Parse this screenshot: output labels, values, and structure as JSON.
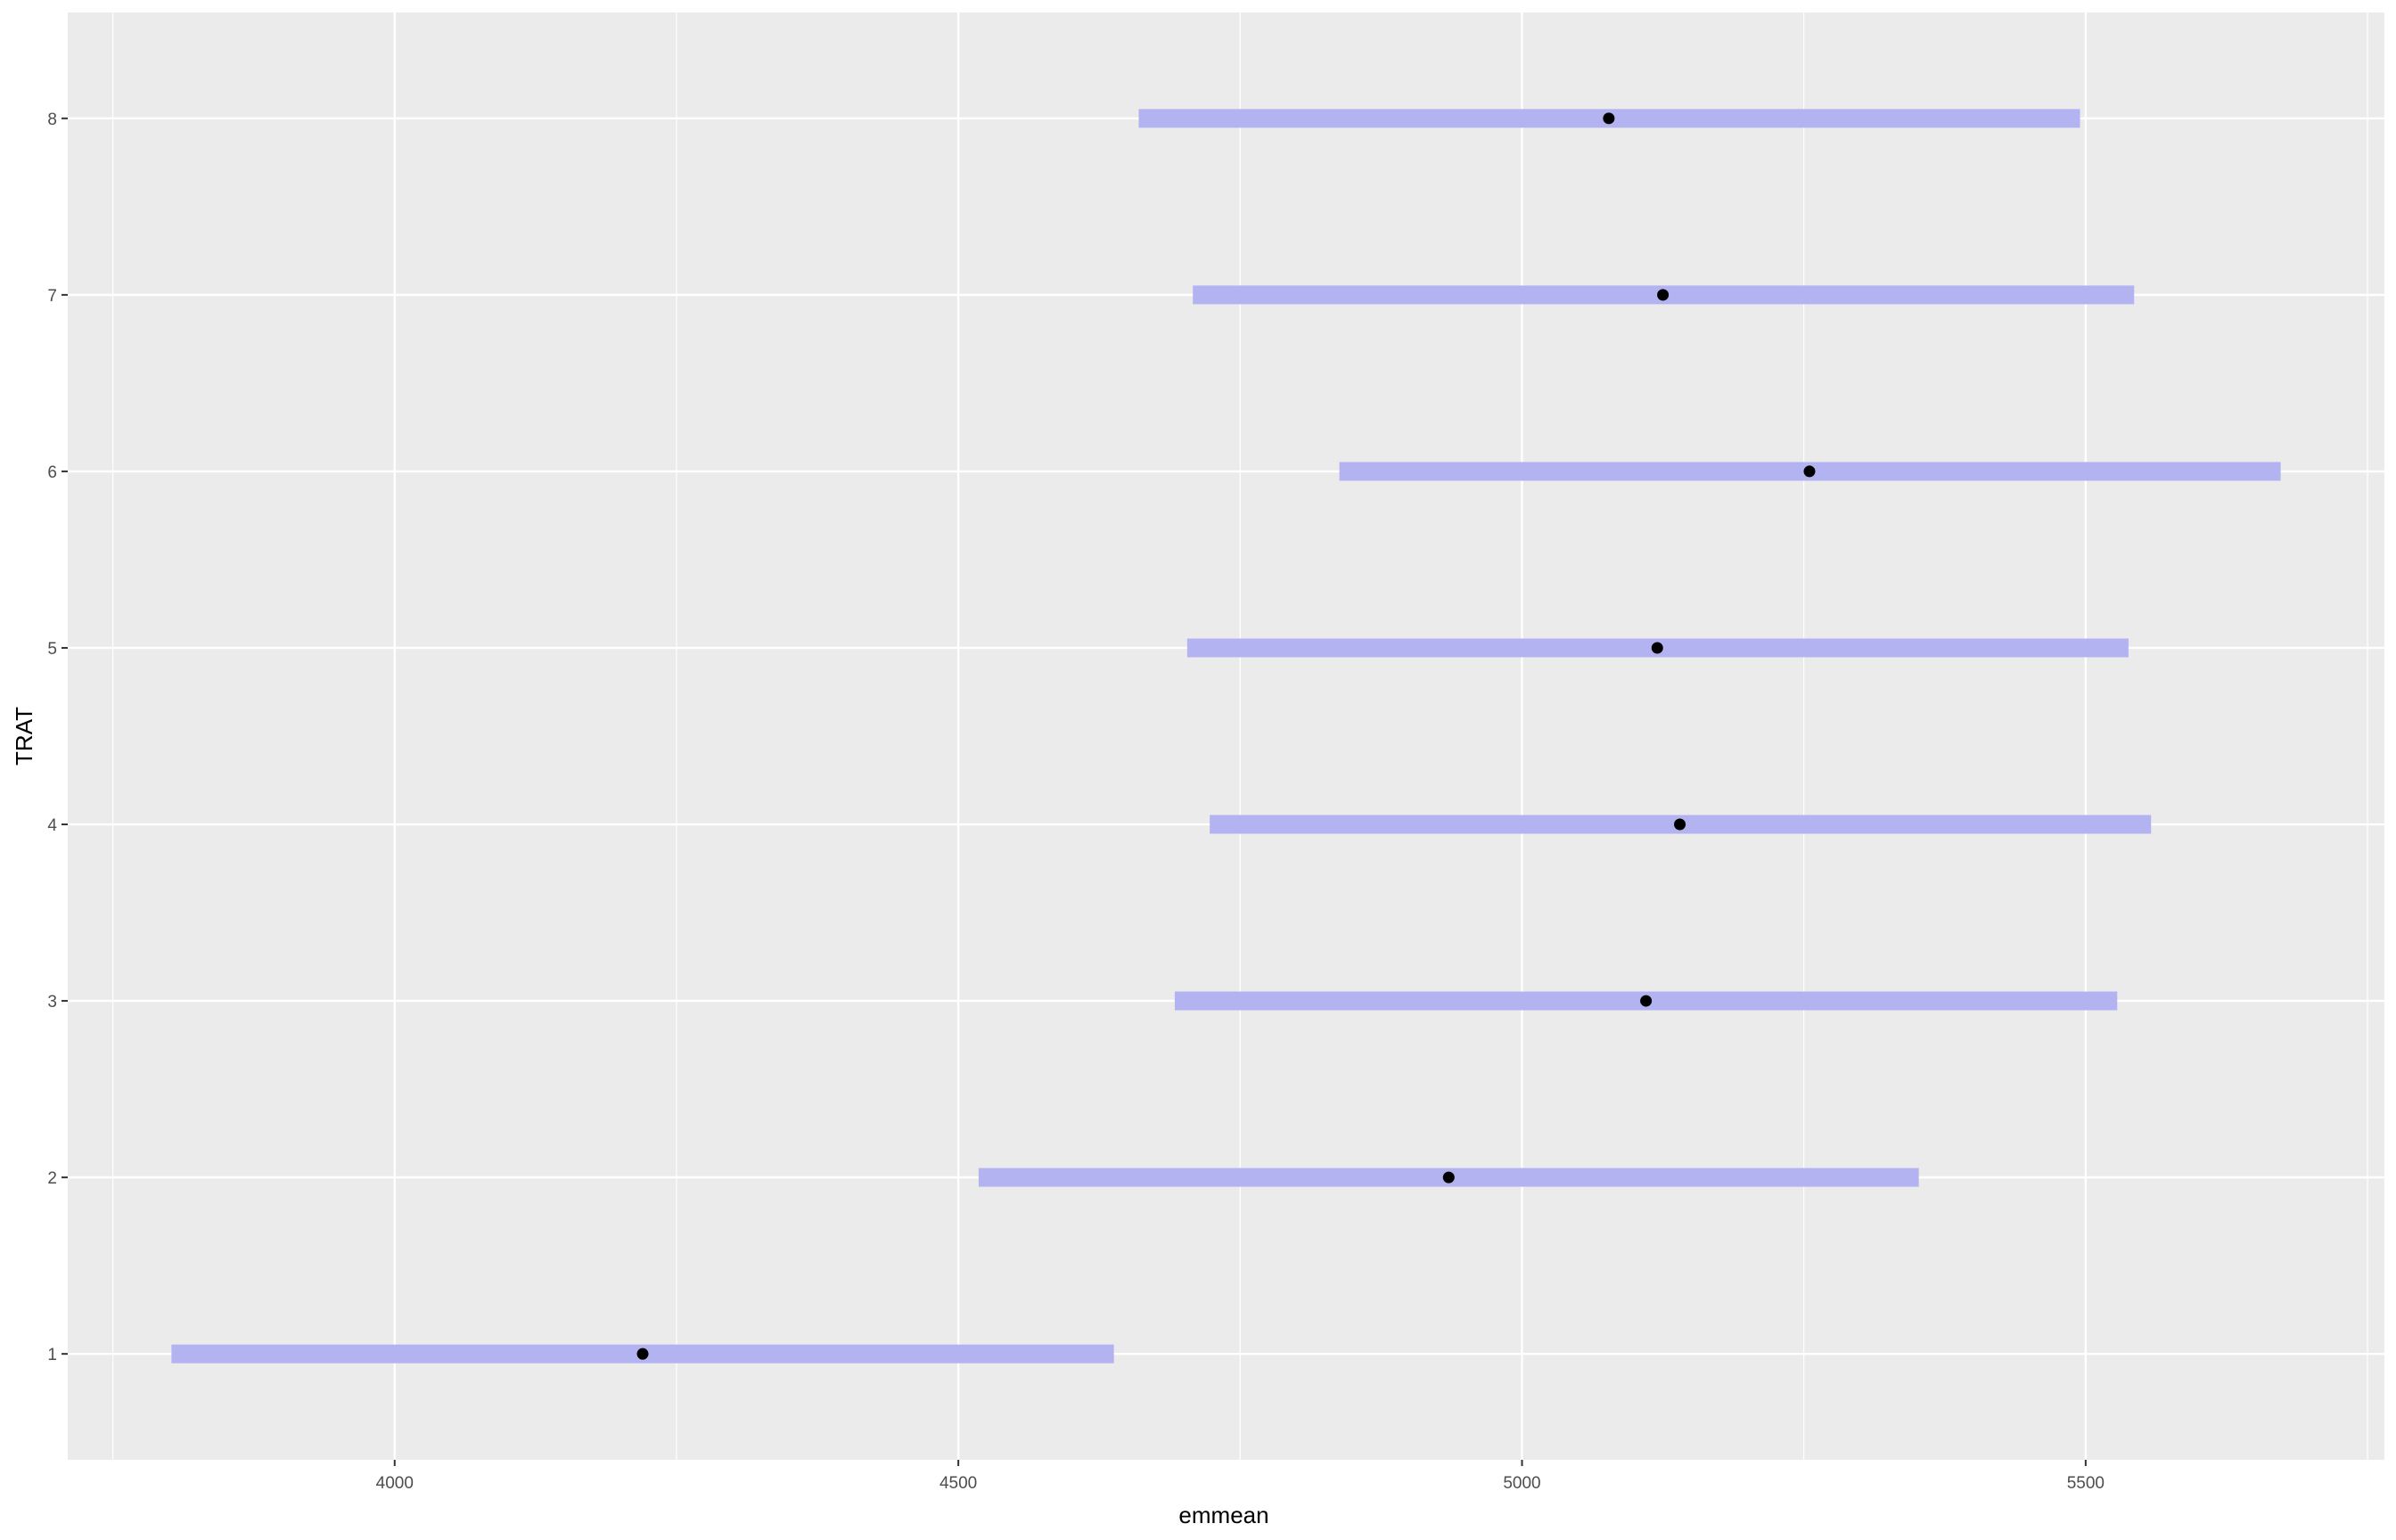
{
  "chart_data": {
    "type": "scatter",
    "xlabel": "emmean",
    "ylabel": "TRAT",
    "categories": [
      "1",
      "2",
      "3",
      "4",
      "5",
      "6",
      "7",
      "8"
    ],
    "series": [
      {
        "emmean": [
          4220,
          4935,
          5110,
          5140,
          5120,
          5255,
          5125,
          5077
        ],
        "lower_CL": [
          3802,
          4518,
          4692,
          4723,
          4703,
          4838,
          4708,
          4660
        ],
        "upper_CL": [
          4638,
          5352,
          5528,
          5558,
          5538,
          5673,
          5543,
          5495
        ]
      }
    ],
    "x_ticks": [
      "4000",
      "4500",
      "5000",
      "5500"
    ],
    "xlim": [
      3710,
      5765
    ],
    "ylim": [
      0.4,
      8.6
    ],
    "grid": true,
    "legend": "none",
    "colors": {
      "panel": "#EBEBEB",
      "grid": "#FFFFFF",
      "interval": "#B3B3F2",
      "point": "#000000"
    }
  }
}
